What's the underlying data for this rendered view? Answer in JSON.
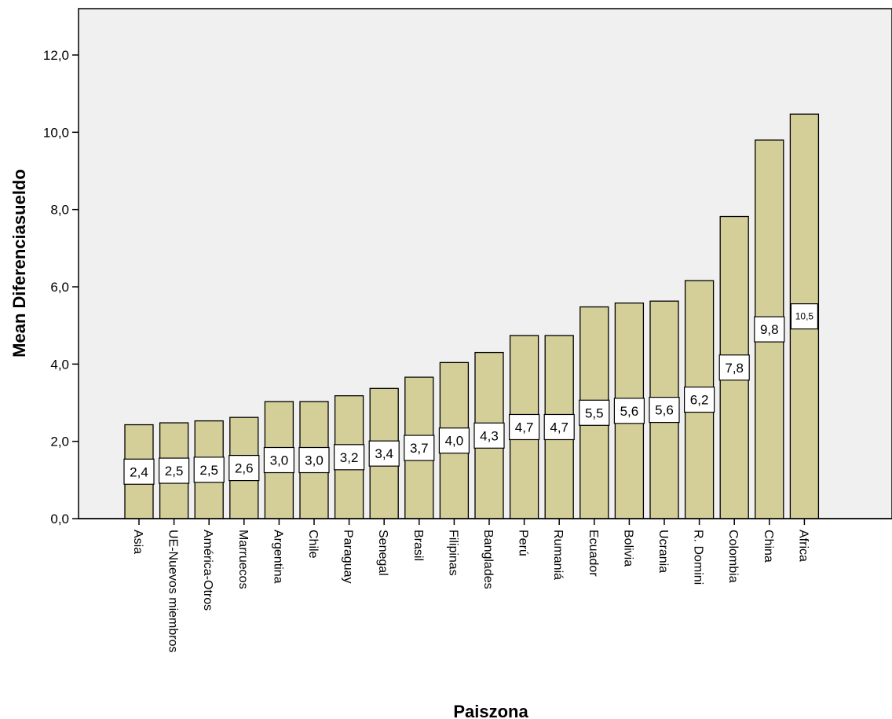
{
  "chart_data": {
    "type": "bar",
    "xlabel": "Paiszona",
    "ylabel": "Mean Diferenciasueldo",
    "ylim": [
      0,
      13.2
    ],
    "yticks": [
      "0,0",
      "2,0",
      "4,0",
      "6,0",
      "8,0",
      "10,0",
      "12,0"
    ],
    "grid": false,
    "bar_color": "#d4cf99",
    "plot_background": "#f0f0f0",
    "categories": [
      "Asia",
      "UE-Nuevos miembros",
      "América-Otros",
      "Marruecos",
      "Argentina",
      "Chile",
      "Paraguay",
      "Senegal",
      "Brasil",
      "Filipinas",
      "Banglades",
      "Perú",
      "Rumaniá",
      "Ecuador",
      "Bolivia",
      "Ucrania",
      "R. Domini",
      "Colombia",
      "China",
      "Africa"
    ],
    "values": [
      2.43,
      2.48,
      2.53,
      2.62,
      3.03,
      3.03,
      3.18,
      3.37,
      3.66,
      4.04,
      4.3,
      4.74,
      4.74,
      5.48,
      5.58,
      5.63,
      6.16,
      7.82,
      9.8,
      10.47
    ],
    "data_labels": [
      "2,4",
      "2,5",
      "2,5",
      "2,6",
      "3,0",
      "3,0",
      "3,2",
      "3,4",
      "3,7",
      "4,0",
      "4,3",
      "4,7",
      "4,7",
      "5,5",
      "5,6",
      "5,6",
      "6,2",
      "7,8",
      "9,8",
      "10,5"
    ]
  }
}
